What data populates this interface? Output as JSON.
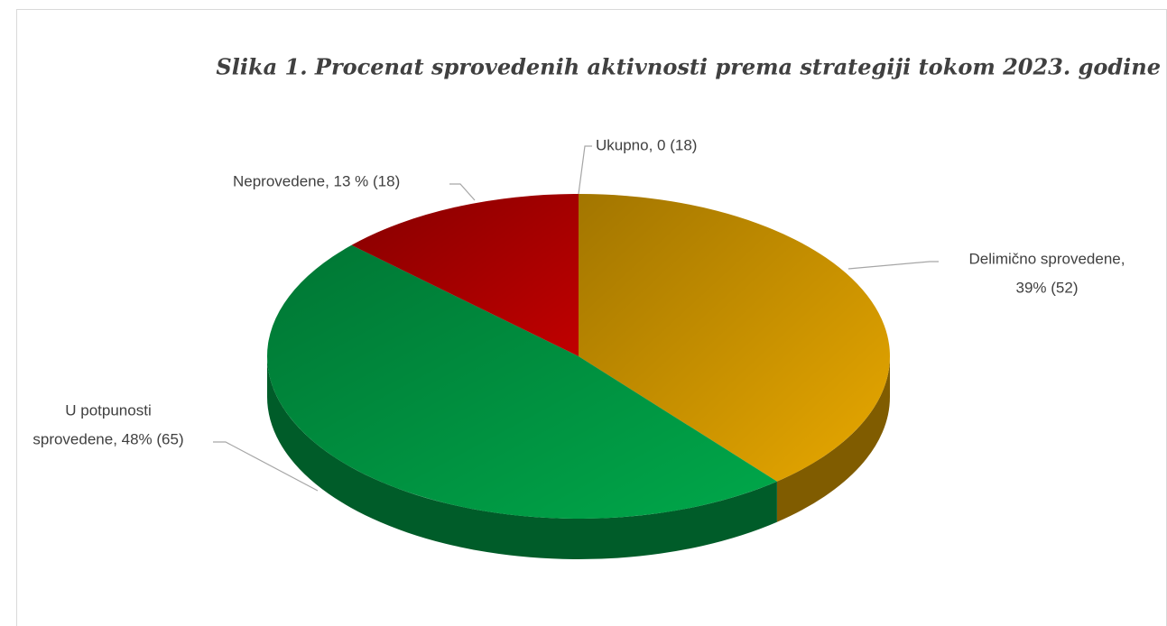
{
  "chart_data": {
    "type": "pie",
    "title": "Slika 1. Procenat sprovedenih aktivnosti prema strategiji tokom 2023. godine",
    "categories": [
      "Ukupno",
      "Delimično sprovedene",
      "U potpunosti sprovedene",
      "Neprovedene"
    ],
    "values": [
      0,
      39,
      48,
      13
    ],
    "value_labels": [
      [
        "Ukupno, 0 (18)"
      ],
      [
        "Delimično sprovedene,",
        "39% (52)"
      ],
      [
        "U potpunosti",
        "sprovedene, 48% (65)"
      ],
      [
        "Neprovedene, 13 % (18)"
      ]
    ],
    "colors": [
      "#7f7f7f",
      "#e8a800",
      "#00a84a",
      "#c00000"
    ]
  }
}
